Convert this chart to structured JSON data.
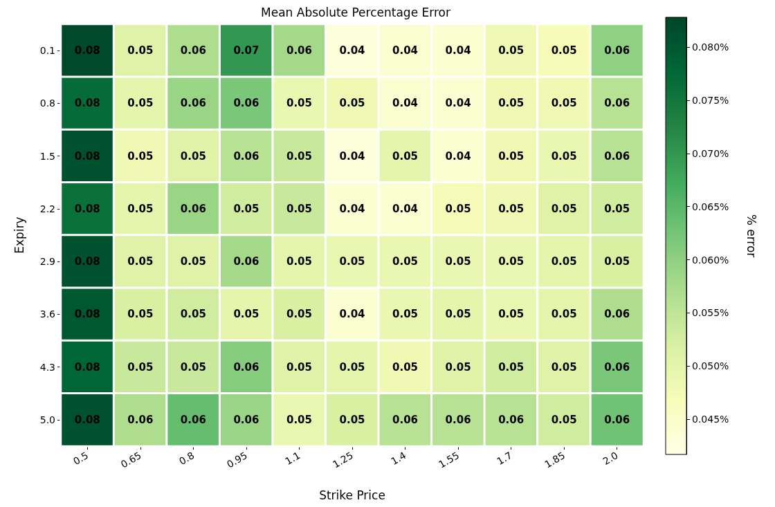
{
  "chart_data": {
    "type": "heatmap",
    "title": "Mean Absolute Percentage Error",
    "xlabel": "Strike Price",
    "ylabel": "Expiry",
    "clabel": "% error",
    "categories": [
      "0.5",
      "0.65",
      "0.8",
      "0.95",
      "1.1",
      "1.25",
      "1.4",
      "1.55",
      "1.7",
      "1.85",
      "2.0"
    ],
    "y_categories": [
      "0.1",
      "0.8",
      "1.5",
      "2.2",
      "2.9",
      "3.6",
      "4.3",
      "5.0"
    ],
    "cells": [
      [
        0.082,
        0.051,
        0.057,
        0.07,
        0.058,
        0.043,
        0.044,
        0.044,
        0.048,
        0.047,
        0.06
      ],
      [
        0.077,
        0.05,
        0.059,
        0.062,
        0.049,
        0.048,
        0.044,
        0.044,
        0.048,
        0.048,
        0.056
      ],
      [
        0.081,
        0.048,
        0.051,
        0.056,
        0.054,
        0.043,
        0.05,
        0.044,
        0.048,
        0.049,
        0.056
      ],
      [
        0.076,
        0.05,
        0.059,
        0.053,
        0.054,
        0.044,
        0.044,
        0.047,
        0.048,
        0.051,
        0.053
      ],
      [
        0.081,
        0.051,
        0.051,
        0.058,
        0.05,
        0.049,
        0.049,
        0.049,
        0.049,
        0.05,
        0.052
      ],
      [
        0.08,
        0.052,
        0.053,
        0.05,
        0.052,
        0.044,
        0.049,
        0.05,
        0.049,
        0.05,
        0.057
      ],
      [
        0.078,
        0.054,
        0.054,
        0.061,
        0.051,
        0.05,
        0.048,
        0.051,
        0.053,
        0.051,
        0.062
      ],
      [
        0.081,
        0.057,
        0.064,
        0.059,
        0.049,
        0.052,
        0.056,
        0.056,
        0.056,
        0.053,
        0.063
      ]
    ],
    "cell_labels": [
      [
        "0.08",
        "0.05",
        "0.06",
        "0.07",
        "0.06",
        "0.04",
        "0.04",
        "0.04",
        "0.05",
        "0.05",
        "0.06"
      ],
      [
        "0.08",
        "0.05",
        "0.06",
        "0.06",
        "0.05",
        "0.05",
        "0.04",
        "0.04",
        "0.05",
        "0.05",
        "0.06"
      ],
      [
        "0.08",
        "0.05",
        "0.05",
        "0.06",
        "0.05",
        "0.04",
        "0.05",
        "0.04",
        "0.05",
        "0.05",
        "0.06"
      ],
      [
        "0.08",
        "0.05",
        "0.06",
        "0.05",
        "0.05",
        "0.04",
        "0.04",
        "0.05",
        "0.05",
        "0.05",
        "0.05"
      ],
      [
        "0.08",
        "0.05",
        "0.05",
        "0.06",
        "0.05",
        "0.05",
        "0.05",
        "0.05",
        "0.05",
        "0.05",
        "0.05"
      ],
      [
        "0.08",
        "0.05",
        "0.05",
        "0.05",
        "0.05",
        "0.04",
        "0.05",
        "0.05",
        "0.05",
        "0.05",
        "0.06"
      ],
      [
        "0.08",
        "0.05",
        "0.05",
        "0.06",
        "0.05",
        "0.05",
        "0.05",
        "0.05",
        "0.05",
        "0.05",
        "0.06"
      ],
      [
        "0.08",
        "0.06",
        "0.06",
        "0.06",
        "0.05",
        "0.05",
        "0.06",
        "0.06",
        "0.06",
        "0.05",
        "0.06"
      ]
    ],
    "clim": [
      0.0417,
      0.0828
    ],
    "cticks": [
      {
        "value": 0.045,
        "label": "0.045%"
      },
      {
        "value": 0.05,
        "label": "0.050%"
      },
      {
        "value": 0.055,
        "label": "0.055%"
      },
      {
        "value": 0.06,
        "label": "0.060%"
      },
      {
        "value": 0.065,
        "label": "0.065%"
      },
      {
        "value": 0.07,
        "label": "0.070%"
      },
      {
        "value": 0.075,
        "label": "0.075%"
      },
      {
        "value": 0.08,
        "label": "0.080%"
      }
    ]
  }
}
